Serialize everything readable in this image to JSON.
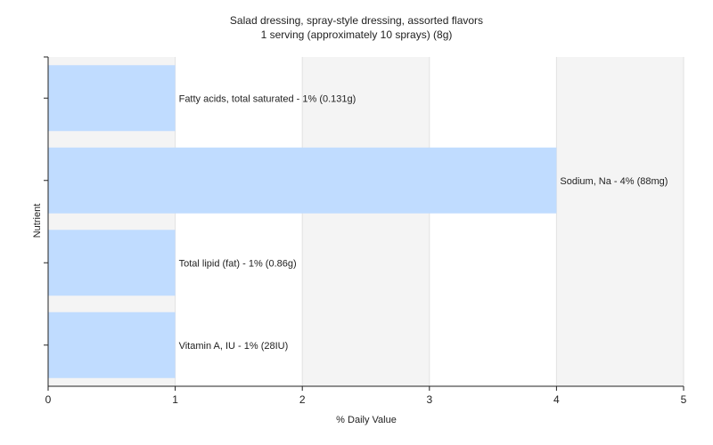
{
  "chart_data": {
    "type": "bar",
    "orientation": "horizontal",
    "title": "Salad dressing, spray-style dressing, assorted flavors",
    "subtitle": "1 serving (approximately 10 sprays) (8g)",
    "xlabel": "% Daily Value",
    "ylabel": "Nutrient",
    "xlim": [
      0,
      5
    ],
    "xticks": [
      0,
      1,
      2,
      3,
      4,
      5
    ],
    "grid": true,
    "bar_color": "#c0dcff",
    "bars": [
      {
        "value": 1,
        "label": "Fatty acids, total saturated - 1% (0.131g)"
      },
      {
        "value": 4,
        "label": "Sodium, Na - 4% (88mg)"
      },
      {
        "value": 1,
        "label": "Total lipid (fat) - 1% (0.86g)"
      },
      {
        "value": 1,
        "label": "Vitamin A, IU - 1% (28IU)"
      }
    ]
  }
}
